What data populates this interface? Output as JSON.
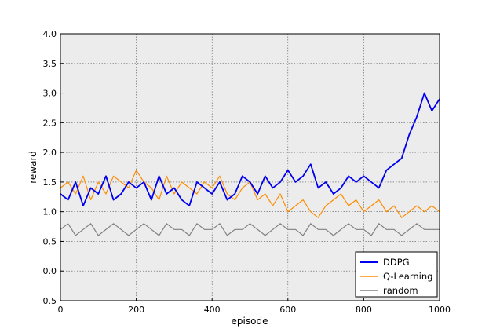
{
  "chart_data": {
    "type": "line",
    "title": "",
    "xlabel": "episode",
    "ylabel": "reward",
    "xlim": [
      0,
      1000
    ],
    "ylim": [
      -0.5,
      4.0
    ],
    "xticks": [
      "0",
      "200",
      "400",
      "600",
      "800",
      "1000"
    ],
    "yticks": [
      "−0.5",
      "0.0",
      "0.5",
      "1.0",
      "1.5",
      "2.0",
      "2.5",
      "3.0",
      "3.5",
      "4.0"
    ],
    "grid": true,
    "legend_position": "bottom-right",
    "x": [
      0,
      20,
      40,
      60,
      80,
      100,
      120,
      140,
      160,
      180,
      200,
      220,
      240,
      260,
      280,
      300,
      320,
      340,
      360,
      380,
      400,
      420,
      440,
      460,
      480,
      500,
      520,
      540,
      560,
      580,
      600,
      620,
      640,
      660,
      680,
      700,
      720,
      740,
      760,
      780,
      800,
      820,
      840,
      860,
      880,
      900,
      920,
      940,
      960,
      980,
      1000
    ],
    "series": [
      {
        "name": "DDPG",
        "color": "#0000ee",
        "values": [
          1.3,
          1.2,
          1.5,
          1.1,
          1.4,
          1.3,
          1.6,
          1.2,
          1.3,
          1.5,
          1.4,
          1.5,
          1.2,
          1.6,
          1.3,
          1.4,
          1.2,
          1.1,
          1.5,
          1.4,
          1.3,
          1.5,
          1.2,
          1.3,
          1.6,
          1.5,
          1.3,
          1.6,
          1.4,
          1.5,
          1.7,
          1.5,
          1.6,
          1.8,
          1.4,
          1.5,
          1.3,
          1.4,
          1.6,
          1.5,
          1.6,
          1.5,
          1.4,
          1.7,
          1.8,
          1.9,
          2.3,
          2.6,
          3.0,
          2.7,
          2.9
        ]
      },
      {
        "name": "Q-Learning",
        "color": "#ff8c00",
        "values": [
          1.4,
          1.5,
          1.3,
          1.6,
          1.2,
          1.5,
          1.3,
          1.6,
          1.5,
          1.4,
          1.7,
          1.5,
          1.4,
          1.2,
          1.6,
          1.3,
          1.5,
          1.4,
          1.3,
          1.5,
          1.4,
          1.6,
          1.3,
          1.2,
          1.4,
          1.5,
          1.2,
          1.3,
          1.1,
          1.3,
          1.0,
          1.1,
          1.2,
          1.0,
          0.9,
          1.1,
          1.2,
          1.3,
          1.1,
          1.2,
          1.0,
          1.1,
          1.2,
          1.0,
          1.1,
          0.9,
          1.0,
          1.1,
          1.0,
          1.1,
          1.0
        ]
      },
      {
        "name": "random",
        "color": "#808080",
        "values": [
          0.7,
          0.8,
          0.6,
          0.7,
          0.8,
          0.6,
          0.7,
          0.8,
          0.7,
          0.6,
          0.7,
          0.8,
          0.7,
          0.6,
          0.8,
          0.7,
          0.7,
          0.6,
          0.8,
          0.7,
          0.7,
          0.8,
          0.6,
          0.7,
          0.7,
          0.8,
          0.7,
          0.6,
          0.7,
          0.8,
          0.7,
          0.7,
          0.6,
          0.8,
          0.7,
          0.7,
          0.6,
          0.7,
          0.8,
          0.7,
          0.7,
          0.6,
          0.8,
          0.7,
          0.7,
          0.6,
          0.7,
          0.8,
          0.7,
          0.7,
          0.7
        ]
      }
    ]
  }
}
